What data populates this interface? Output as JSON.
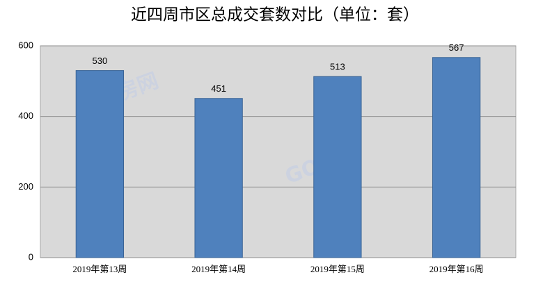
{
  "chart_data": {
    "type": "bar",
    "title": "近四周市区总成交套数对比（单位：套）",
    "categories": [
      "2019年第13周",
      "2019年第14周",
      "2019年第15周",
      "2019年第16周"
    ],
    "values": [
      530,
      451,
      513,
      567
    ],
    "color": "#4f81bd",
    "ylim": [
      0,
      600
    ],
    "yticks": [
      0,
      200,
      400,
      600
    ],
    "grid": true,
    "watermark": "GO房网"
  }
}
